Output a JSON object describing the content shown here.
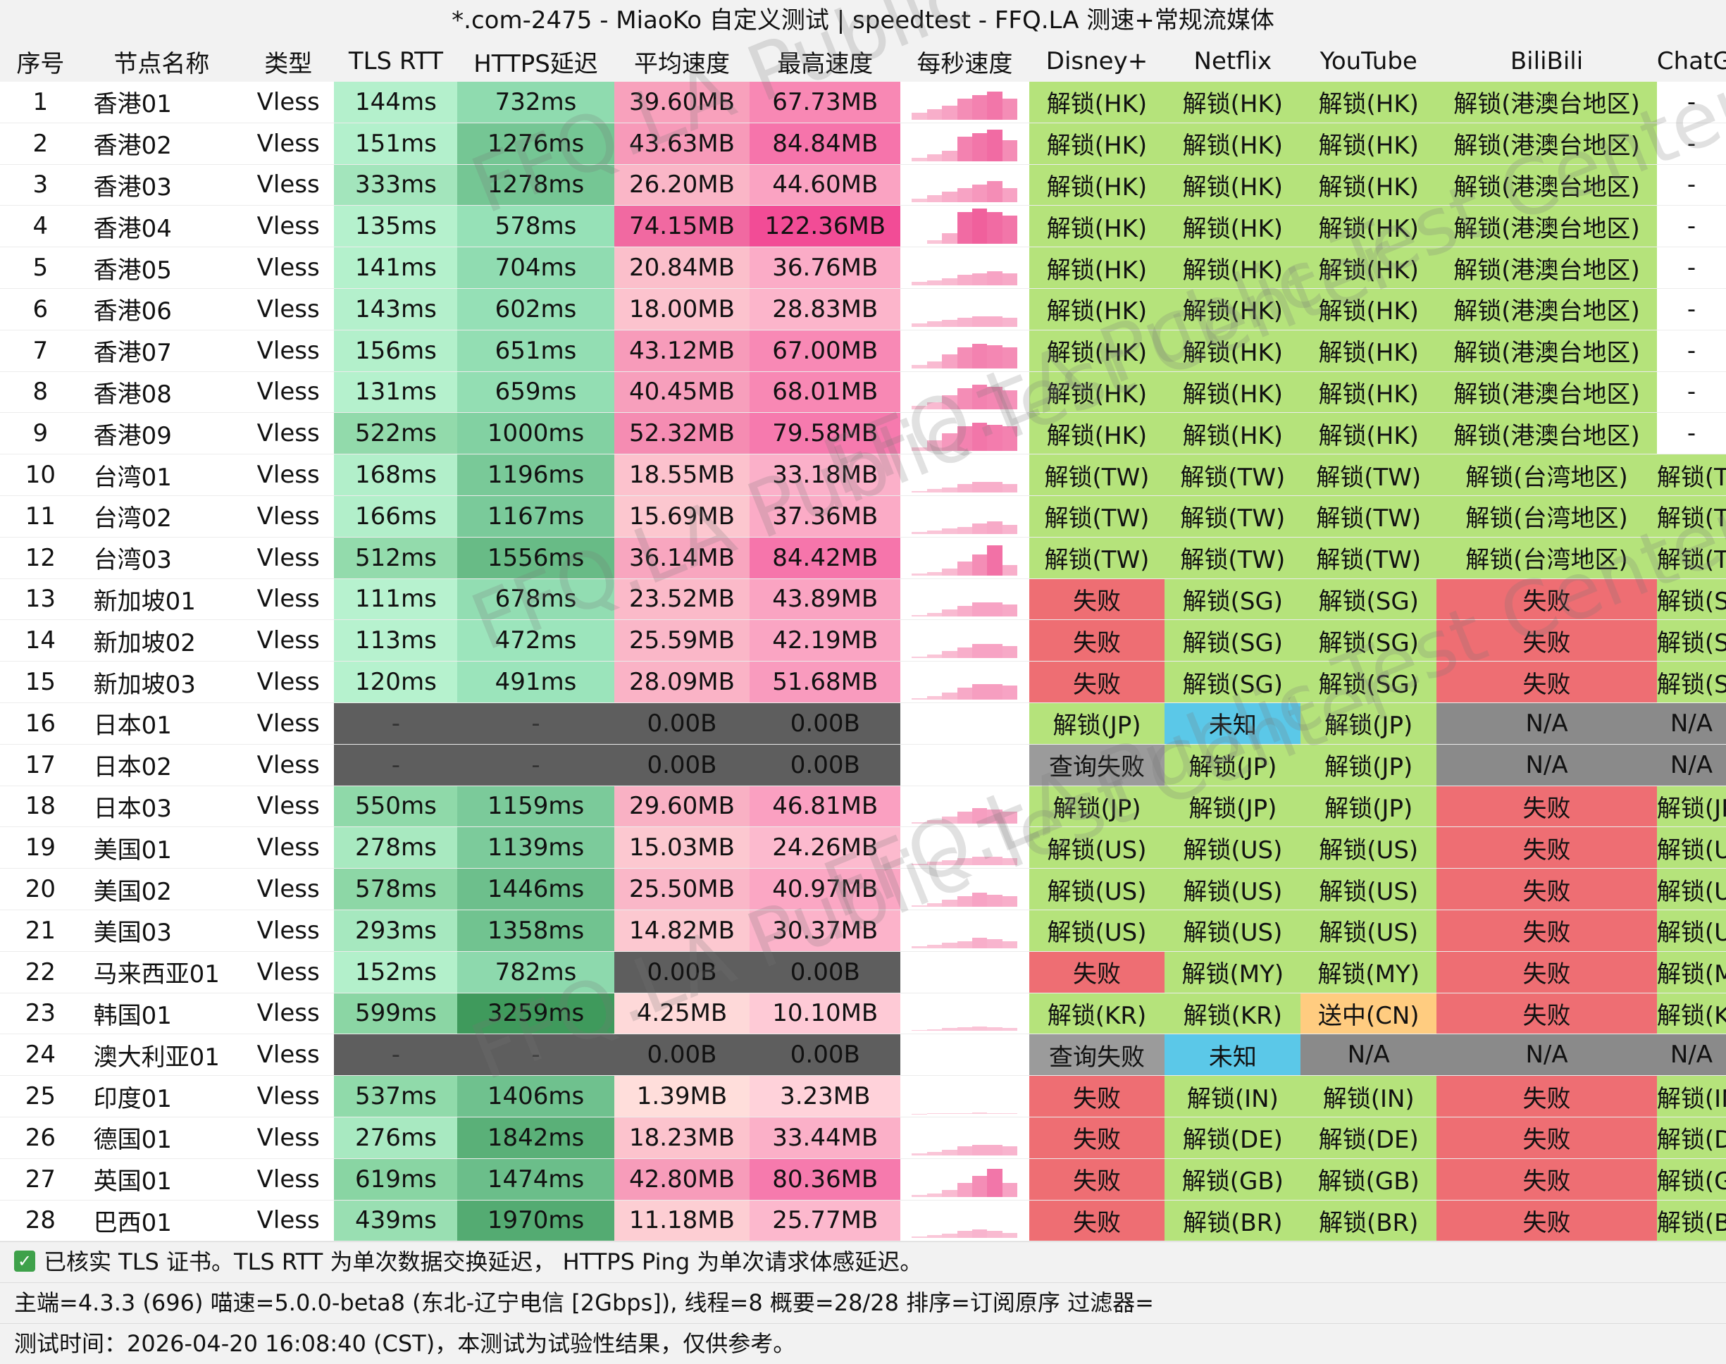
{
  "title": "*.com-2475 - MiaoKo 自定义测试 | speedtest - FFQ.LA 测速+常规流媒体",
  "headers": [
    "序号",
    "节点名称",
    "类型",
    "TLS RTT",
    "HTTPS延迟",
    "平均速度",
    "最高速度",
    "每秒速度",
    "Disney+",
    "Netflix",
    "YouTube",
    "BiliBili",
    "ChatGPT"
  ],
  "rows": [
    {
      "idx": "1",
      "name": "香港01",
      "type": "Vless",
      "tls": "144ms",
      "https": "732ms",
      "avg": "39.60MB",
      "max": "67.73MB",
      "spark": [
        0.2,
        0.3,
        0.4,
        0.6,
        0.7,
        0.8,
        0.6
      ],
      "disney": "解锁(HK)",
      "netflix": "解锁(HK)",
      "youtube": "解锁(HK)",
      "bili": "解锁(港澳台地区)",
      "gpt": "-"
    },
    {
      "idx": "2",
      "name": "香港02",
      "type": "Vless",
      "tls": "151ms",
      "https": "1276ms",
      "avg": "43.63MB",
      "max": "84.84MB",
      "spark": [
        0.1,
        0.2,
        0.3,
        0.7,
        0.8,
        0.9,
        0.6
      ],
      "disney": "解锁(HK)",
      "netflix": "解锁(HK)",
      "youtube": "解锁(HK)",
      "bili": "解锁(港澳台地区)",
      "gpt": "-"
    },
    {
      "idx": "3",
      "name": "香港03",
      "type": "Vless",
      "tls": "333ms",
      "https": "1278ms",
      "avg": "26.20MB",
      "max": "44.60MB",
      "spark": [
        0.1,
        0.2,
        0.3,
        0.4,
        0.5,
        0.6,
        0.4
      ],
      "disney": "解锁(HK)",
      "netflix": "解锁(HK)",
      "youtube": "解锁(HK)",
      "bili": "解锁(港澳台地区)",
      "gpt": "-"
    },
    {
      "idx": "4",
      "name": "香港04",
      "type": "Vless",
      "tls": "135ms",
      "https": "578ms",
      "avg": "74.15MB",
      "max": "122.36MB",
      "spark": [
        0.0,
        0.1,
        0.3,
        0.9,
        1.0,
        0.9,
        0.8
      ],
      "disney": "解锁(HK)",
      "netflix": "解锁(HK)",
      "youtube": "解锁(HK)",
      "bili": "解锁(港澳台地区)",
      "gpt": "-"
    },
    {
      "idx": "5",
      "name": "香港05",
      "type": "Vless",
      "tls": "141ms",
      "https": "704ms",
      "avg": "20.84MB",
      "max": "36.76MB",
      "spark": [
        0.1,
        0.15,
        0.2,
        0.3,
        0.35,
        0.4,
        0.35
      ],
      "disney": "解锁(HK)",
      "netflix": "解锁(HK)",
      "youtube": "解锁(HK)",
      "bili": "解锁(港澳台地区)",
      "gpt": "-"
    },
    {
      "idx": "6",
      "name": "香港06",
      "type": "Vless",
      "tls": "143ms",
      "https": "602ms",
      "avg": "18.00MB",
      "max": "28.83MB",
      "spark": [
        0.1,
        0.15,
        0.2,
        0.25,
        0.3,
        0.3,
        0.25
      ],
      "disney": "解锁(HK)",
      "netflix": "解锁(HK)",
      "youtube": "解锁(HK)",
      "bili": "解锁(港澳台地区)",
      "gpt": "-"
    },
    {
      "idx": "7",
      "name": "香港07",
      "type": "Vless",
      "tls": "156ms",
      "https": "651ms",
      "avg": "43.12MB",
      "max": "67.00MB",
      "spark": [
        0.1,
        0.2,
        0.4,
        0.6,
        0.7,
        0.65,
        0.6
      ],
      "disney": "解锁(HK)",
      "netflix": "解锁(HK)",
      "youtube": "解锁(HK)",
      "bili": "解锁(港澳台地区)",
      "gpt": "-"
    },
    {
      "idx": "8",
      "name": "香港08",
      "type": "Vless",
      "tls": "131ms",
      "https": "659ms",
      "avg": "40.45MB",
      "max": "68.01MB",
      "spark": [
        0.1,
        0.2,
        0.4,
        0.6,
        0.7,
        0.65,
        0.55
      ],
      "disney": "解锁(HK)",
      "netflix": "解锁(HK)",
      "youtube": "解锁(HK)",
      "bili": "解锁(港澳台地区)",
      "gpt": "-"
    },
    {
      "idx": "9",
      "name": "香港09",
      "type": "Vless",
      "tls": "522ms",
      "https": "1000ms",
      "avg": "52.32MB",
      "max": "79.58MB",
      "spark": [
        0.1,
        0.3,
        0.5,
        0.7,
        0.8,
        0.75,
        0.7
      ],
      "disney": "解锁(HK)",
      "netflix": "解锁(HK)",
      "youtube": "解锁(HK)",
      "bili": "解锁(港澳台地区)",
      "gpt": "-"
    },
    {
      "idx": "10",
      "name": "台湾01",
      "type": "Vless",
      "tls": "168ms",
      "https": "1196ms",
      "avg": "18.55MB",
      "max": "33.18MB",
      "spark": [
        0.05,
        0.1,
        0.15,
        0.25,
        0.3,
        0.3,
        0.25
      ],
      "disney": "解锁(TW)",
      "netflix": "解锁(TW)",
      "youtube": "解锁(TW)",
      "bili": "解锁(台湾地区)",
      "gpt": "解锁(TW)"
    },
    {
      "idx": "11",
      "name": "台湾02",
      "type": "Vless",
      "tls": "166ms",
      "https": "1167ms",
      "avg": "15.69MB",
      "max": "37.36MB",
      "spark": [
        0.05,
        0.1,
        0.15,
        0.2,
        0.3,
        0.35,
        0.25
      ],
      "disney": "解锁(TW)",
      "netflix": "解锁(TW)",
      "youtube": "解锁(TW)",
      "bili": "解锁(台湾地区)",
      "gpt": "解锁(TW)"
    },
    {
      "idx": "12",
      "name": "台湾03",
      "type": "Vless",
      "tls": "512ms",
      "https": "1556ms",
      "avg": "36.14MB",
      "max": "84.42MB",
      "spark": [
        0.05,
        0.1,
        0.2,
        0.4,
        0.6,
        0.85,
        0.3
      ],
      "disney": "解锁(TW)",
      "netflix": "解锁(TW)",
      "youtube": "解锁(TW)",
      "bili": "解锁(台湾地区)",
      "gpt": "解锁(TW)"
    },
    {
      "idx": "13",
      "name": "新加坡01",
      "type": "Vless",
      "tls": "111ms",
      "https": "678ms",
      "avg": "23.52MB",
      "max": "43.89MB",
      "spark": [
        0.05,
        0.1,
        0.2,
        0.3,
        0.4,
        0.4,
        0.35
      ],
      "disney": "失败",
      "netflix": "解锁(SG)",
      "youtube": "解锁(SG)",
      "bili": "失败",
      "gpt": "解锁(SG)"
    },
    {
      "idx": "14",
      "name": "新加坡02",
      "type": "Vless",
      "tls": "113ms",
      "https": "472ms",
      "avg": "25.59MB",
      "max": "42.19MB",
      "spark": [
        0.05,
        0.1,
        0.2,
        0.3,
        0.4,
        0.4,
        0.35
      ],
      "disney": "失败",
      "netflix": "解锁(SG)",
      "youtube": "解锁(SG)",
      "bili": "失败",
      "gpt": "解锁(SG)"
    },
    {
      "idx": "15",
      "name": "新加坡03",
      "type": "Vless",
      "tls": "120ms",
      "https": "491ms",
      "avg": "28.09MB",
      "max": "51.68MB",
      "spark": [
        0.05,
        0.1,
        0.2,
        0.35,
        0.45,
        0.45,
        0.4
      ],
      "disney": "失败",
      "netflix": "解锁(SG)",
      "youtube": "解锁(SG)",
      "bili": "失败",
      "gpt": "解锁(SG)"
    },
    {
      "idx": "16",
      "name": "日本01",
      "type": "Vless",
      "tls": "-",
      "https": "-",
      "avg": "0.00B",
      "max": "0.00B",
      "spark": [],
      "disney": "解锁(JP)",
      "netflix": "未知",
      "youtube": "解锁(JP)",
      "bili": "N/A",
      "gpt": "N/A"
    },
    {
      "idx": "17",
      "name": "日本02",
      "type": "Vless",
      "tls": "-",
      "https": "-",
      "avg": "0.00B",
      "max": "0.00B",
      "spark": [],
      "disney": "查询失败",
      "netflix": "解锁(JP)",
      "youtube": "解锁(JP)",
      "bili": "N/A",
      "gpt": "N/A"
    },
    {
      "idx": "18",
      "name": "日本03",
      "type": "Vless",
      "tls": "550ms",
      "https": "1159ms",
      "avg": "29.60MB",
      "max": "46.81MB",
      "spark": [
        0.05,
        0.1,
        0.2,
        0.35,
        0.45,
        0.4,
        0.35
      ],
      "disney": "解锁(JP)",
      "netflix": "解锁(JP)",
      "youtube": "解锁(JP)",
      "bili": "失败",
      "gpt": "解锁(JP)"
    },
    {
      "idx": "19",
      "name": "美国01",
      "type": "Vless",
      "tls": "278ms",
      "https": "1139ms",
      "avg": "15.03MB",
      "max": "24.26MB",
      "spark": [
        0.05,
        0.1,
        0.15,
        0.2,
        0.25,
        0.25,
        0.2
      ],
      "disney": "解锁(US)",
      "netflix": "解锁(US)",
      "youtube": "解锁(US)",
      "bili": "失败",
      "gpt": "解锁(US)"
    },
    {
      "idx": "20",
      "name": "美国02",
      "type": "Vless",
      "tls": "578ms",
      "https": "1446ms",
      "avg": "25.50MB",
      "max": "40.97MB",
      "spark": [
        0.05,
        0.1,
        0.2,
        0.3,
        0.4,
        0.35,
        0.3
      ],
      "disney": "解锁(US)",
      "netflix": "解锁(US)",
      "youtube": "解锁(US)",
      "bili": "失败",
      "gpt": "解锁(US)"
    },
    {
      "idx": "21",
      "name": "美国03",
      "type": "Vless",
      "tls": "293ms",
      "https": "1358ms",
      "avg": "14.82MB",
      "max": "30.37MB",
      "spark": [
        0.05,
        0.1,
        0.15,
        0.2,
        0.3,
        0.25,
        0.2
      ],
      "disney": "解锁(US)",
      "netflix": "解锁(US)",
      "youtube": "解锁(US)",
      "bili": "失败",
      "gpt": "解锁(US)"
    },
    {
      "idx": "22",
      "name": "马来西亚01",
      "type": "Vless",
      "tls": "152ms",
      "https": "782ms",
      "avg": "0.00B",
      "max": "0.00B",
      "spark": [],
      "disney": "失败",
      "netflix": "解锁(MY)",
      "youtube": "解锁(MY)",
      "bili": "失败",
      "gpt": "解锁(MY)"
    },
    {
      "idx": "23",
      "name": "韩国01",
      "type": "Vless",
      "tls": "599ms",
      "https": "3259ms",
      "avg": "4.25MB",
      "max": "10.10MB",
      "spark": [
        0.02,
        0.05,
        0.08,
        0.1,
        0.12,
        0.1,
        0.08
      ],
      "disney": "解锁(KR)",
      "netflix": "解锁(KR)",
      "youtube": "送中(CN)",
      "bili": "失败",
      "gpt": "解锁(KR)"
    },
    {
      "idx": "24",
      "name": "澳大利亚01",
      "type": "Vless",
      "tls": "-",
      "https": "-",
      "avg": "0.00B",
      "max": "0.00B",
      "spark": [],
      "disney": "查询失败",
      "netflix": "未知",
      "youtube": "N/A",
      "bili": "N/A",
      "gpt": "N/A"
    },
    {
      "idx": "25",
      "name": "印度01",
      "type": "Vless",
      "tls": "537ms",
      "https": "1406ms",
      "avg": "1.39MB",
      "max": "3.23MB",
      "spark": [
        0.01,
        0.02,
        0.03,
        0.03,
        0.04,
        0.03,
        0.02
      ],
      "disney": "失败",
      "netflix": "解锁(IN)",
      "youtube": "解锁(IN)",
      "bili": "失败",
      "gpt": "解锁(IN)"
    },
    {
      "idx": "26",
      "name": "德国01",
      "type": "Vless",
      "tls": "276ms",
      "https": "1842ms",
      "avg": "18.23MB",
      "max": "33.44MB",
      "spark": [
        0.05,
        0.1,
        0.15,
        0.25,
        0.3,
        0.3,
        0.25
      ],
      "disney": "失败",
      "netflix": "解锁(DE)",
      "youtube": "解锁(DE)",
      "bili": "失败",
      "gpt": "解锁(DE)"
    },
    {
      "idx": "27",
      "name": "英国01",
      "type": "Vless",
      "tls": "619ms",
      "https": "1474ms",
      "avg": "42.80MB",
      "max": "80.36MB",
      "spark": [
        0.05,
        0.1,
        0.2,
        0.4,
        0.6,
        0.8,
        0.4
      ],
      "disney": "失败",
      "netflix": "解锁(GB)",
      "youtube": "解锁(GB)",
      "bili": "失败",
      "gpt": "解锁(GB)"
    },
    {
      "idx": "28",
      "name": "巴西01",
      "type": "Vless",
      "tls": "439ms",
      "https": "1970ms",
      "avg": "11.18MB",
      "max": "25.77MB",
      "spark": [
        0.05,
        0.08,
        0.12,
        0.2,
        0.25,
        0.2,
        0.15
      ],
      "disney": "失败",
      "netflix": "解锁(BR)",
      "youtube": "解锁(BR)",
      "bili": "失败",
      "gpt": "解锁(BR)"
    }
  ],
  "footer": {
    "line1": "已核实 TLS 证书。TLS RTT 为单次数据交换延迟， HTTPS Ping 为单次请求体感延迟。",
    "line2": "主端=4.3.3 (696) 喵速=5.0.0-beta8 (东北-辽宁电信 [2Gbps]), 线程=8 概要=28/28 排序=订阅原序 过滤器=",
    "line3": "测试时间：2026-04-20 16:08:40 (CST)，本测试为试验性结果，仅供参考。",
    "check_icon": "check-icon"
  },
  "watermark": "FFQ.LA Public Test Center",
  "colors": {
    "unlock": "#b5e37b",
    "fail": "#ee6e73",
    "unknown": "#5bc8e8",
    "na": "#8a8a8a",
    "query_fail": "#9b9b9b",
    "cn": "#ffcc80",
    "empty_metric": "#5e5e5e",
    "tls_fast": "#b7f2cf",
    "tls_mid": "#a6e8c0",
    "tls_slow": "#92d9ac"
  }
}
